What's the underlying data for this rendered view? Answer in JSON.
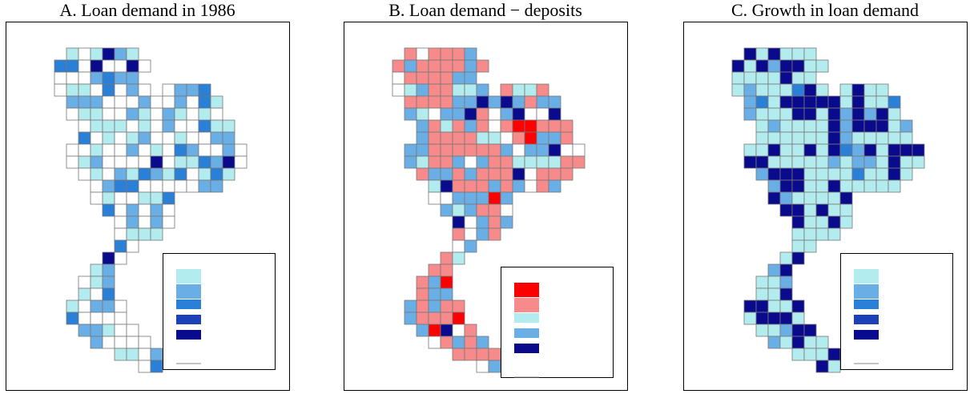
{
  "panels": [
    {
      "title": "A. Loan demand in 1986"
    },
    {
      "title": "B. Loan demand − deposits"
    },
    {
      "title": "C. Growth in loan demand"
    }
  ]
}
